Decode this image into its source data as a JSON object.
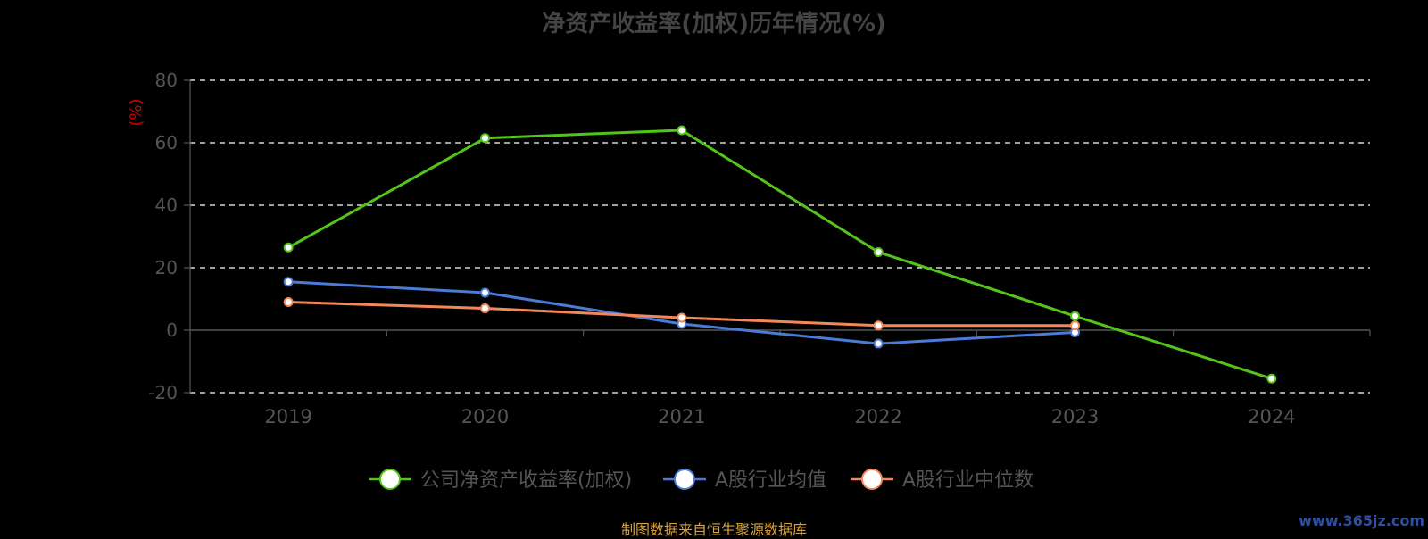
{
  "chart_data": {
    "type": "line",
    "title": "净资产收益率(加权)历年情况(%)",
    "ylabel": "(%)",
    "categories": [
      "2019",
      "2020",
      "2021",
      "2022",
      "2023",
      "2024"
    ],
    "ylim": [
      -20,
      80
    ],
    "yticks": [
      80,
      60,
      40,
      20,
      0,
      -20
    ],
    "grid": true,
    "legend_position": "bottom-center",
    "series": [
      {
        "name": "公司净资产收益率(加权)",
        "color": "#52c41a",
        "values": [
          26.5,
          61.5,
          64.0,
          25.0,
          4.5,
          -15.5
        ]
      },
      {
        "name": "A股行业均值",
        "color": "#4a7bd6",
        "values": [
          15.5,
          12.0,
          2.0,
          -4.3,
          -0.7,
          null
        ]
      },
      {
        "name": "A股行业中位数",
        "color": "#f3875a",
        "values": [
          9.0,
          7.0,
          4.0,
          1.5,
          1.5,
          null
        ]
      }
    ]
  },
  "footer": {
    "source": "制图数据来自恒生聚源数据库",
    "watermark": "www.365jz.com"
  }
}
